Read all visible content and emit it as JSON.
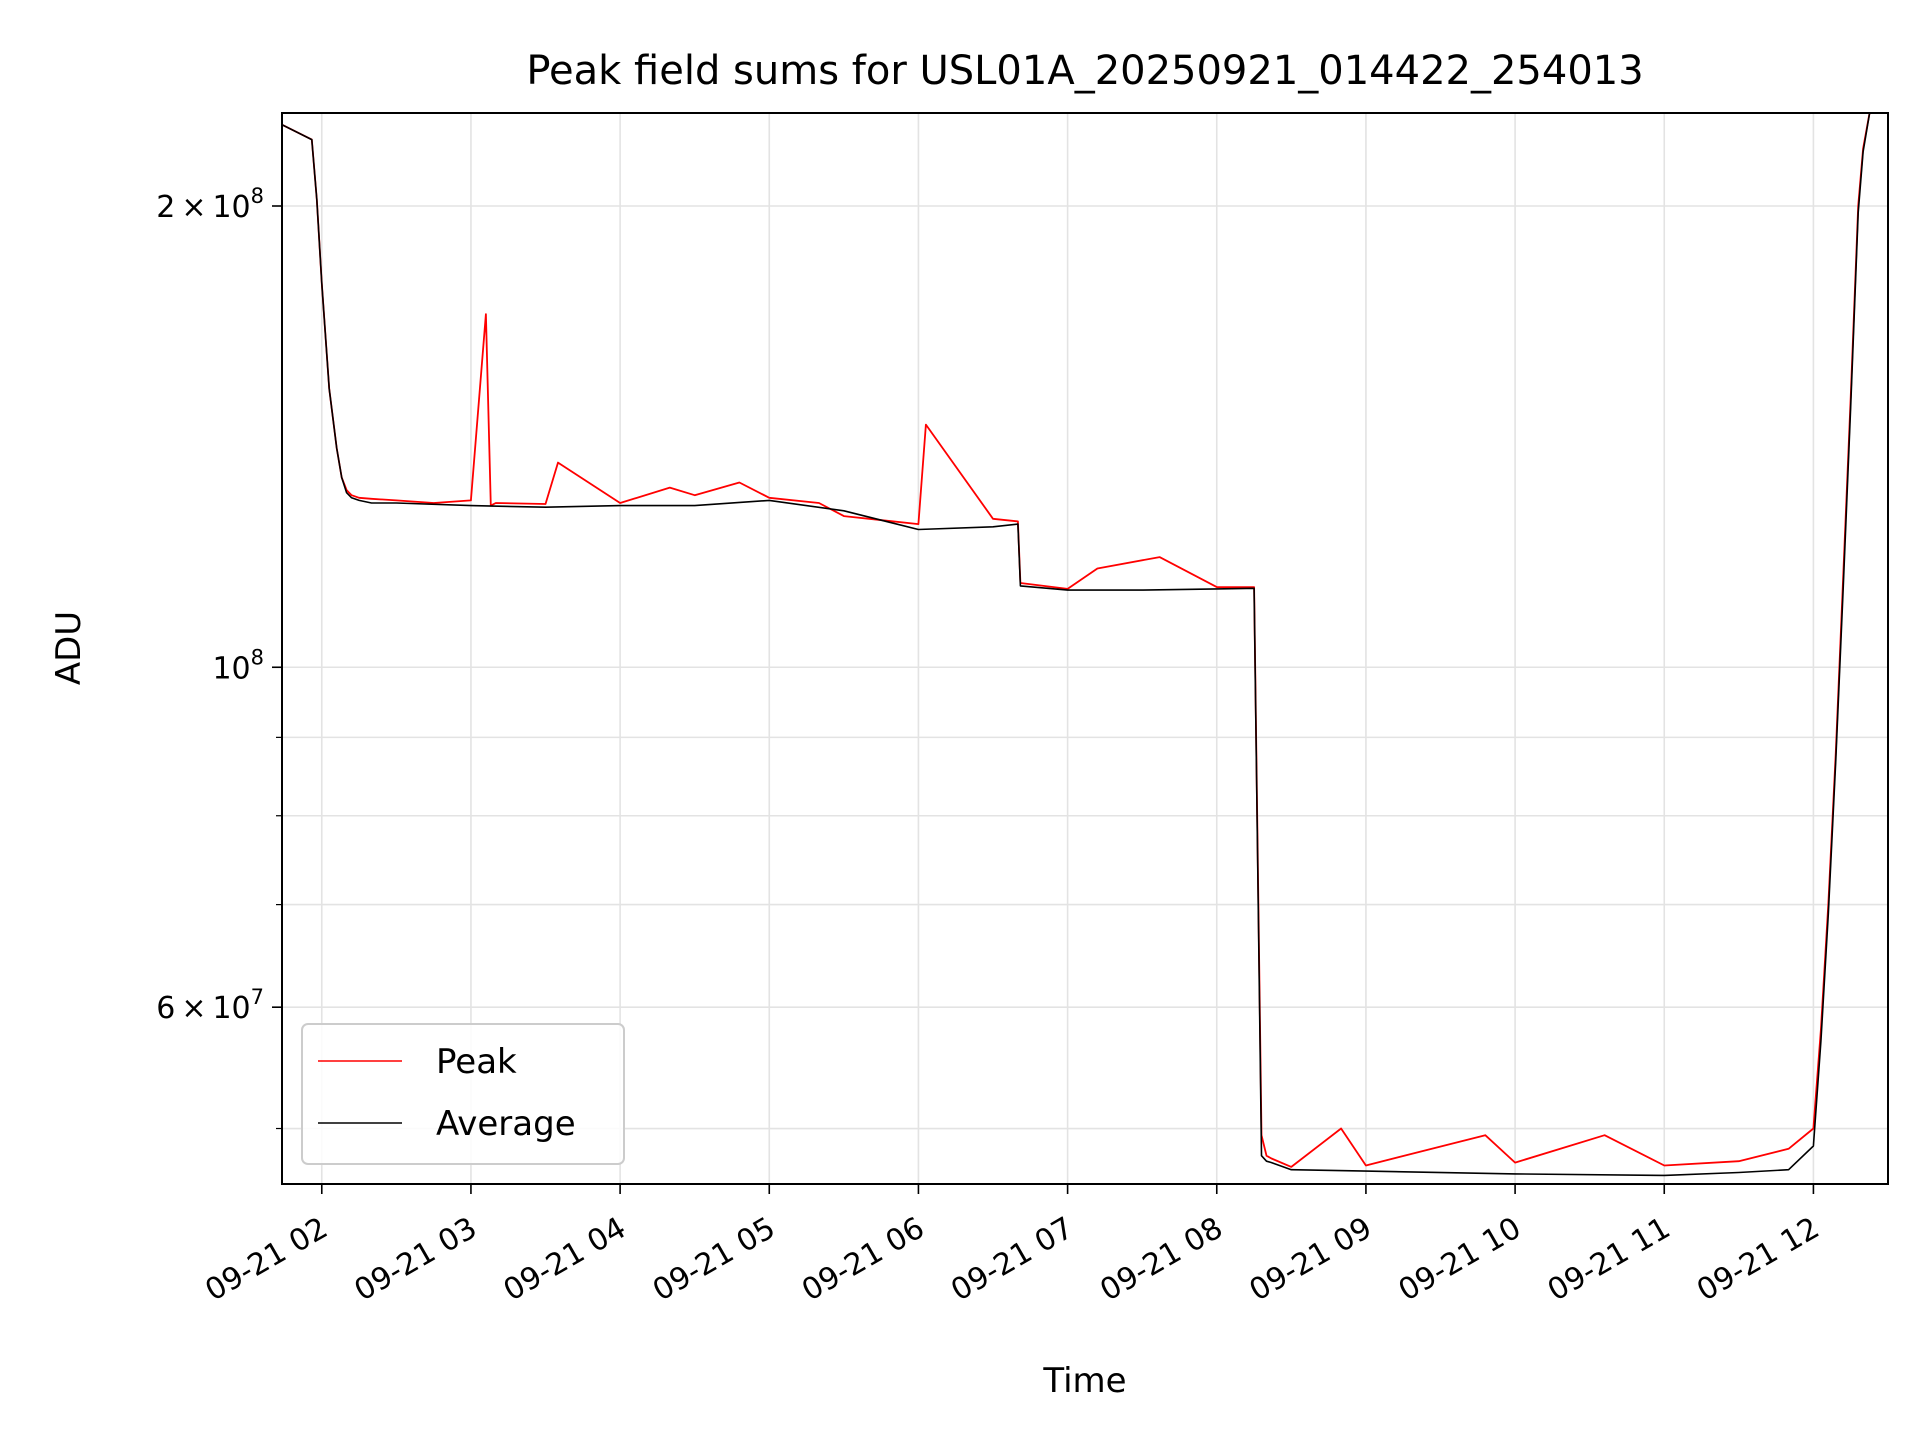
{
  "chart_data": {
    "type": "line",
    "title": "Peak field sums for USL01A_20250921_014422_254013",
    "xlabel": "Time",
    "ylabel": "ADU",
    "x_type": "datetime",
    "xlim": [
      "2025-09-21 01:44",
      "2025-09-21 12:30"
    ],
    "ylim": [
      46000000,
      230000000
    ],
    "y_scale": "log",
    "grid": true,
    "legend_position": "lower-left",
    "x_ticks": [
      "2025-09-21 02:00",
      "2025-09-21 03:00",
      "2025-09-21 04:00",
      "2025-09-21 05:00",
      "2025-09-21 06:00",
      "2025-09-21 07:00",
      "2025-09-21 08:00",
      "2025-09-21 09:00",
      "2025-09-21 10:00",
      "2025-09-21 11:00",
      "2025-09-21 12:00"
    ],
    "x_tick_labels": [
      "09-21 02",
      "09-21 03",
      "09-21 04",
      "09-21 05",
      "09-21 06",
      "09-21 07",
      "09-21 08",
      "09-21 09",
      "09-21 10",
      "09-21 11",
      "09-21 12"
    ],
    "y_major_ticks": [
      {
        "value": 60000000,
        "mantissa": "6",
        "exponent": "7"
      },
      {
        "value": 100000000,
        "mantissa": "",
        "exponent": "8"
      },
      {
        "value": 200000000,
        "mantissa": "2",
        "exponent": "8"
      }
    ],
    "y_minor_ticks": [
      50000000,
      70000000,
      80000000,
      90000000,
      300000000
    ],
    "series": [
      {
        "name": "Peak",
        "color": "#ff0000",
        "x": [
          "2025-09-21 01:44",
          "2025-09-21 01:56",
          "2025-09-21 01:58",
          "2025-09-21 02:00",
          "2025-09-21 02:03",
          "2025-09-21 02:06",
          "2025-09-21 02:08",
          "2025-09-21 02:10",
          "2025-09-21 02:12",
          "2025-09-21 02:15",
          "2025-09-21 02:20",
          "2025-09-21 02:30",
          "2025-09-21 02:45",
          "2025-09-21 03:00",
          "2025-09-21 03:06",
          "2025-09-21 03:08",
          "2025-09-21 03:10",
          "2025-09-21 03:30",
          "2025-09-21 03:35",
          "2025-09-21 04:00",
          "2025-09-21 04:20",
          "2025-09-21 04:30",
          "2025-09-21 04:48",
          "2025-09-21 05:00",
          "2025-09-21 05:20",
          "2025-09-21 05:30",
          "2025-09-21 06:00",
          "2025-09-21 06:03",
          "2025-09-21 06:30",
          "2025-09-21 06:40",
          "2025-09-21 06:41",
          "2025-09-21 07:00",
          "2025-09-21 07:12",
          "2025-09-21 07:37",
          "2025-09-21 08:00",
          "2025-09-21 08:15",
          "2025-09-21 08:18",
          "2025-09-21 08:20",
          "2025-09-21 08:22",
          "2025-09-21 08:30",
          "2025-09-21 08:50",
          "2025-09-21 09:00",
          "2025-09-21 09:48",
          "2025-09-21 10:00",
          "2025-09-21 10:36",
          "2025-09-21 11:00",
          "2025-09-21 11:30",
          "2025-09-21 11:50",
          "2025-09-21 12:00",
          "2025-09-21 12:03",
          "2025-09-21 12:06",
          "2025-09-21 12:09",
          "2025-09-21 12:12",
          "2025-09-21 12:15",
          "2025-09-21 12:18",
          "2025-09-21 12:20",
          "2025-09-21 12:23"
        ],
        "y": [
          226000000,
          221000000,
          202000000,
          178000000,
          152000000,
          139000000,
          133000000,
          130500000,
          129500000,
          129000000,
          128800000,
          128500000,
          128000000,
          128500000,
          170000000,
          127500000,
          128000000,
          127800000,
          136000000,
          128000000,
          131000000,
          129500000,
          132000000,
          129000000,
          128000000,
          125500000,
          124000000,
          144000000,
          125000000,
          124500000,
          113500000,
          112500000,
          116000000,
          118000000,
          112800000,
          112800000,
          49500000,
          48000000,
          47800000,
          47200000,
          50000000,
          47300000,
          49500000,
          47500000,
          49500000,
          47300000,
          47600000,
          48500000,
          50000000,
          58000000,
          70000000,
          88000000,
          115000000,
          150000000,
          200000000,
          218000000,
          232000000
        ]
      },
      {
        "name": "Average",
        "color": "#000000",
        "x": [
          "2025-09-21 01:44",
          "2025-09-21 01:56",
          "2025-09-21 01:58",
          "2025-09-21 02:00",
          "2025-09-21 02:03",
          "2025-09-21 02:06",
          "2025-09-21 02:08",
          "2025-09-21 02:10",
          "2025-09-21 02:12",
          "2025-09-21 02:15",
          "2025-09-21 02:20",
          "2025-09-21 02:30",
          "2025-09-21 03:00",
          "2025-09-21 03:30",
          "2025-09-21 04:00",
          "2025-09-21 04:30",
          "2025-09-21 05:00",
          "2025-09-21 05:30",
          "2025-09-21 06:00",
          "2025-09-21 06:30",
          "2025-09-21 06:40",
          "2025-09-21 06:41",
          "2025-09-21 07:00",
          "2025-09-21 07:30",
          "2025-09-21 08:00",
          "2025-09-21 08:15",
          "2025-09-21 08:18",
          "2025-09-21 08:20",
          "2025-09-21 08:22",
          "2025-09-21 08:30",
          "2025-09-21 09:00",
          "2025-09-21 10:00",
          "2025-09-21 11:00",
          "2025-09-21 11:30",
          "2025-09-21 11:50",
          "2025-09-21 12:00",
          "2025-09-21 12:03",
          "2025-09-21 12:06",
          "2025-09-21 12:09",
          "2025-09-21 12:12",
          "2025-09-21 12:15",
          "2025-09-21 12:18",
          "2025-09-21 12:20",
          "2025-09-21 12:23"
        ],
        "y": [
          226000000,
          221000000,
          202000000,
          178000000,
          152000000,
          139000000,
          133000000,
          130000000,
          129000000,
          128500000,
          128000000,
          128000000,
          127500000,
          127200000,
          127500000,
          127500000,
          128500000,
          126500000,
          123000000,
          123500000,
          124000000,
          113000000,
          112300000,
          112300000,
          112500000,
          112600000,
          48000000,
          47600000,
          47500000,
          47000000,
          46900000,
          46700000,
          46600000,
          46800000,
          47000000,
          48700000,
          57000000,
          69000000,
          87000000,
          113000000,
          148000000,
          198000000,
          217000000,
          232000000
        ]
      }
    ]
  }
}
